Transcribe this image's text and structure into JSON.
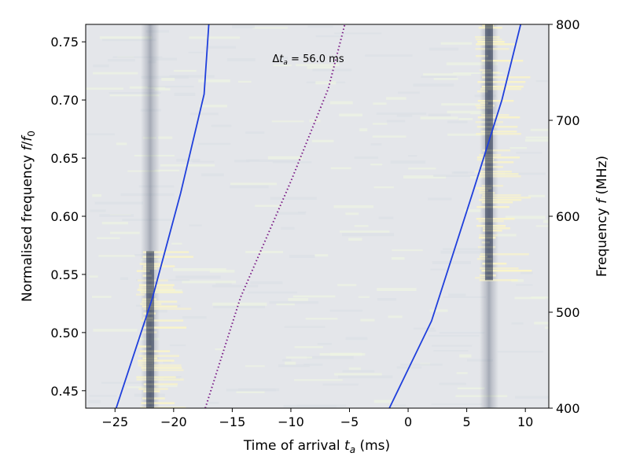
{
  "chart_data": {
    "type": "heatmap",
    "xlabel": "Time of arrival",
    "xlabel_sym": "t",
    "xlabel_sub": "a",
    "xlabel_unit": " (ms)",
    "ylabel_left": "Normalised frequency ",
    "ylabel_left_sym": "f",
    "ylabel_left_slash": "/",
    "ylabel_left_sym2": "f",
    "ylabel_left_sub": "0",
    "ylabel_right": "Frequency ",
    "ylabel_right_sym": "f",
    "ylabel_right_unit": " (MHz)",
    "xlim": [
      -27.5,
      12
    ],
    "ylim_left": [
      0.435,
      0.765
    ],
    "ylim_right": [
      400,
      800
    ],
    "x_ticks": [
      -25,
      -20,
      -15,
      -10,
      -5,
      0,
      5,
      10
    ],
    "x_tick_labels": [
      "−25",
      "−20",
      "−15",
      "−10",
      "−5",
      "0",
      "5",
      "10"
    ],
    "y_left_ticks": [
      0.45,
      0.5,
      0.55,
      0.6,
      0.65,
      0.7,
      0.75
    ],
    "y_left_tick_labels": [
      "0.45",
      "0.50",
      "0.55",
      "0.60",
      "0.65",
      "0.70",
      "0.75"
    ],
    "y_right_ticks": [
      400,
      500,
      600,
      700,
      800
    ],
    "y_right_tick_labels": [
      "400",
      "500",
      "600",
      "700",
      "800"
    ],
    "annotation": {
      "prefix": "Δ",
      "sym": "t",
      "sub": "a",
      "value": " = 56.0 ms",
      "x": -12,
      "y": 0.735
    },
    "bursts": [
      {
        "center_ms": -22.0,
        "bright_band_norm_freq": [
          0.435,
          0.57
        ]
      },
      {
        "center_ms": 6.9,
        "bright_band_norm_freq": [
          0.545,
          0.765
        ]
      }
    ],
    "curves": [
      {
        "style": "solid",
        "color": "#1f3fdc",
        "points": [
          [
            -24.9,
            0.435
          ],
          [
            -21.8,
            0.53
          ],
          [
            -19.4,
            0.62
          ],
          [
            -17.4,
            0.705
          ],
          [
            -17.0,
            0.765
          ]
        ]
      },
      {
        "style": "dotted",
        "color": "#7a1a86",
        "points": [
          [
            -17.3,
            0.435
          ],
          [
            -14.3,
            0.53
          ],
          [
            -10.0,
            0.63
          ],
          [
            -6.8,
            0.71
          ],
          [
            -5.4,
            0.765
          ]
        ]
      },
      {
        "style": "solid",
        "color": "#1f3fdc",
        "points": [
          [
            -1.6,
            0.435
          ],
          [
            2.0,
            0.51
          ],
          [
            5.5,
            0.62
          ],
          [
            8.0,
            0.7
          ],
          [
            9.6,
            0.765
          ]
        ]
      }
    ],
    "colors": {
      "background": "#e4e6ea",
      "burst_dark": "#1e2a46",
      "burst_bright": "#fbf5c7",
      "line_blue": "#1f3fdc",
      "line_purple": "#7a1a86"
    }
  }
}
